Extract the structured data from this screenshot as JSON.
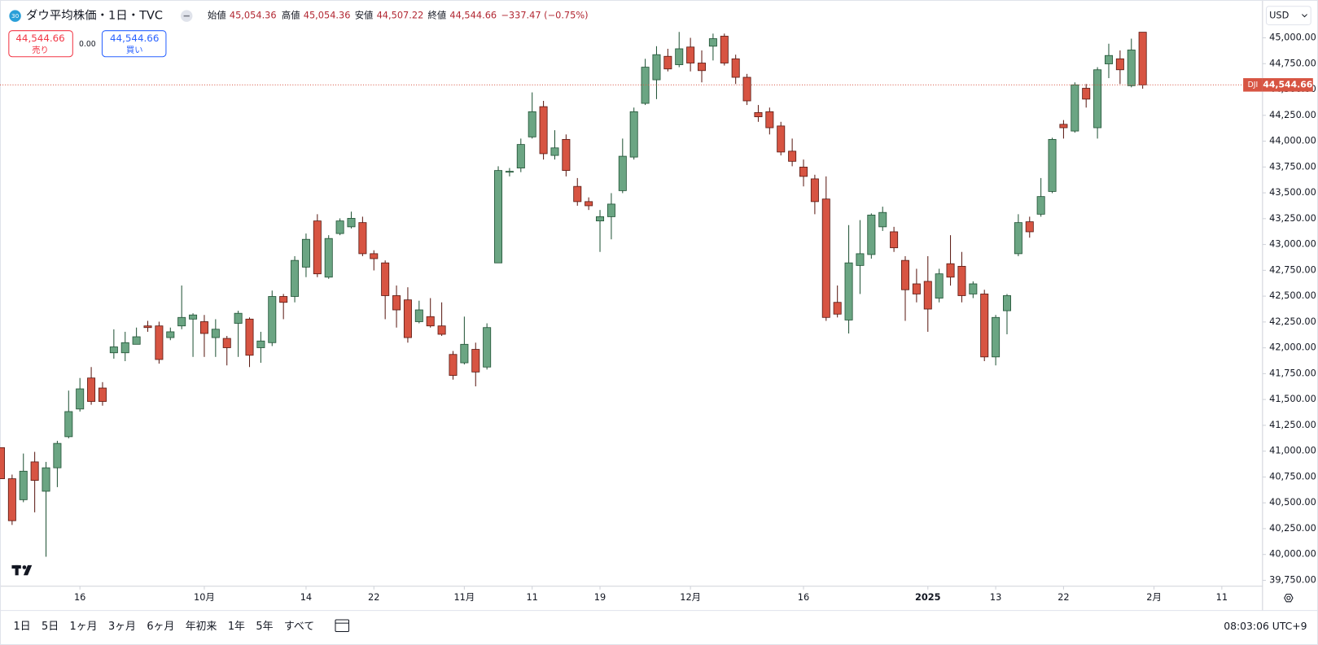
{
  "header": {
    "badge": "30",
    "title": "ダウ平均株価・1日・TVC",
    "ohlc": [
      {
        "label": "始値",
        "value": "45,054.36"
      },
      {
        "label": "高値",
        "value": "45,054.36"
      },
      {
        "label": "安値",
        "value": "44,507.22"
      },
      {
        "label": "終値",
        "value": "44,544.66"
      }
    ],
    "change": "−337.47 (−0.75%)"
  },
  "trade": {
    "sell_price": "44,544.66",
    "sell_label": "売り",
    "spread": "0.00",
    "buy_price": "44,544.66",
    "buy_label": "買い"
  },
  "chart_data": {
    "type": "candlestick",
    "currency": "USD",
    "symbol": "DJI",
    "last_price_label": "44,544.66",
    "up_color": "#6ba583",
    "down_color": "#d75442",
    "open": [
      41034,
      40733,
      40530,
      40896,
      40612,
      40839,
      41140,
      41408,
      41708,
      41611,
      41952,
      41952,
      42034,
      42212,
      42212,
      42099,
      42212,
      42278,
      42253,
      42099,
      42091,
      42237,
      42278,
      42001,
      42050,
      42497,
      42497,
      42781,
      43228,
      42684,
      43106,
      43171,
      43212,
      42911,
      42822,
      42505,
      42464,
      42253,
      42302,
      42212,
      41936,
      41855,
      41985,
      41814,
      42822,
      43700,
      43740,
      44041,
      44334,
      43862,
      44017,
      43562,
      43415,
      43228,
      43269,
      43521,
      43846,
      44366,
      44594,
      44821,
      44740,
      44911,
      44756,
      44919,
      45016,
      44797,
      44618,
      44277,
      44285,
      44147,
      43903,
      43749,
      43635,
      43440,
      42440,
      42269,
      42797,
      42903,
      43171,
      43123,
      42846,
      42619,
      42643,
      42481,
      42814,
      42789,
      42521,
      42521,
      41912,
      42359,
      42911,
      43220,
      43293,
      43513,
      44163,
      44098,
      44512,
      44130,
      44748,
      44797,
      44537,
      45054.36
    ],
    "high": [
      41034,
      40773,
      40977,
      40993,
      40896,
      41100,
      41586,
      41708,
      41814,
      41668,
      42179,
      42155,
      42196,
      42261,
      42253,
      42196,
      42603,
      42334,
      42318,
      42277,
      42115,
      42359,
      42294,
      42155,
      42554,
      42521,
      42887,
      43106,
      43293,
      43090,
      43253,
      43318,
      43269,
      42944,
      42846,
      42603,
      42586,
      42456,
      42481,
      42440,
      41969,
      42302,
      42050,
      42237,
      43757,
      43740,
      44025,
      44472,
      44390,
      44106,
      44065,
      43643,
      43456,
      43334,
      43497,
      44025,
      44325,
      44797,
      44919,
      44894,
      45057,
      45000,
      44878,
      45041,
      45041,
      44837,
      44651,
      44350,
      44325,
      44187,
      44025,
      43822,
      43675,
      43659,
      42603,
      43188,
      43236,
      43301,
      43366,
      43171,
      42887,
      42765,
      42887,
      42765,
      43090,
      42928,
      42643,
      42562,
      42318,
      42521,
      43293,
      43269,
      43643,
      44033,
      44204,
      44569,
      44553,
      44716,
      44943,
      44878,
      44992,
      45054.36
    ],
    "low": [
      40733,
      40286,
      40506,
      40408,
      39978,
      40652,
      41124,
      41383,
      41449,
      41440,
      41895,
      41871,
      42034,
      42155,
      41847,
      42074,
      42180,
      41912,
      41912,
      41912,
      41830,
      41912,
      41814,
      41855,
      42017,
      42277,
      42440,
      42684,
      42684,
      42668,
      43090,
      43155,
      42887,
      42749,
      42277,
      42196,
      42050,
      42237,
      42196,
      42115,
      41692,
      41839,
      41627,
      41790,
      42822,
      43659,
      43700,
      44025,
      43822,
      43822,
      43659,
      43375,
      43334,
      42928,
      43050,
      43497,
      43822,
      44350,
      44407,
      44675,
      44716,
      44675,
      44569,
      44781,
      44732,
      44553,
      44350,
      44187,
      44065,
      43862,
      43757,
      43562,
      43293,
      42261,
      42294,
      42139,
      42521,
      42863,
      43131,
      42928,
      42261,
      42440,
      42155,
      42440,
      42602,
      42440,
      42481,
      41871,
      41830,
      42131,
      42887,
      43066,
      43269,
      43497,
      44025,
      44082,
      44325,
      44025,
      44610,
      44553,
      44521,
      44507.22
    ],
    "close": [
      40733,
      40327,
      40806,
      40717,
      40839,
      41075,
      41383,
      41603,
      41481,
      41481,
      42009,
      42050,
      42107,
      42196,
      41887,
      42155,
      42294,
      42318,
      42139,
      42180,
      42001,
      42334,
      41928,
      42066,
      42497,
      42440,
      42846,
      43050,
      42716,
      43058,
      43228,
      43253,
      42911,
      42863,
      42505,
      42367,
      42099,
      42367,
      42212,
      42131,
      41733,
      42034,
      41766,
      42196,
      43716,
      43708,
      43968,
      44285,
      43879,
      43935,
      43716,
      43415,
      43375,
      43269,
      43391,
      43854,
      44285,
      44716,
      44837,
      44699,
      44894,
      44756,
      44683,
      44992,
      44756,
      44618,
      44390,
      44236,
      44130,
      43895,
      43805,
      43659,
      43415,
      42294,
      42326,
      42822,
      42911,
      43285,
      43310,
      42968,
      42562,
      42521,
      42375,
      42716,
      42684,
      42505,
      42619,
      41912,
      42294,
      42505,
      43212,
      43123,
      43464,
      44017,
      44130,
      44545,
      44407,
      44691,
      44829,
      44691,
      44882.13,
      44544.66
    ],
    "xlim": [
      -0.07,
      111.6
    ],
    "xticks": [
      {
        "value": 7,
        "label": "16"
      },
      {
        "value": 18,
        "label": "10月"
      },
      {
        "value": 27,
        "label": "14"
      },
      {
        "value": 33,
        "label": "22"
      },
      {
        "value": 41,
        "label": "11月"
      },
      {
        "value": 47,
        "label": "11"
      },
      {
        "value": 53,
        "label": "19"
      },
      {
        "value": 61,
        "label": "12月"
      },
      {
        "value": 71,
        "label": "16"
      },
      {
        "value": 82,
        "label": "2025"
      },
      {
        "value": 88,
        "label": "13"
      },
      {
        "value": 94,
        "label": "22"
      },
      {
        "value": 102,
        "label": "2月"
      },
      {
        "value": 108,
        "label": "11"
      }
    ],
    "ylim": [
      39693,
      45366
    ],
    "yticks": [
      {
        "value": 45000,
        "label": "45,000.00"
      },
      {
        "value": 44750,
        "label": "44,750.00"
      },
      {
        "value": 44500,
        "label": "44,500.00"
      },
      {
        "value": 44250,
        "label": "44,250.00"
      },
      {
        "value": 44000,
        "label": "44,000.00"
      },
      {
        "value": 43750,
        "label": "43,750.00"
      },
      {
        "value": 43500,
        "label": "43,500.00"
      },
      {
        "value": 43250,
        "label": "43,250.00"
      },
      {
        "value": 43000,
        "label": "43,000.00"
      },
      {
        "value": 42750,
        "label": "42,750.00"
      },
      {
        "value": 42500,
        "label": "42,500.00"
      },
      {
        "value": 42250,
        "label": "42,250.00"
      },
      {
        "value": 42000,
        "label": "42,000.00"
      },
      {
        "value": 41750,
        "label": "41,750.00"
      },
      {
        "value": 41500,
        "label": "41,500.00"
      },
      {
        "value": 41250,
        "label": "41,250.00"
      },
      {
        "value": 41000,
        "label": "41,000.00"
      },
      {
        "value": 40750,
        "label": "40,750.00"
      },
      {
        "value": 40500,
        "label": "40,500.00"
      },
      {
        "value": 40250,
        "label": "40,250.00"
      },
      {
        "value": 40000,
        "label": "40,000.00"
      },
      {
        "value": 39750,
        "label": "39,750.00"
      }
    ]
  },
  "toolbar": {
    "ranges": [
      "1日",
      "5日",
      "1ヶ月",
      "3ヶ月",
      "6ヶ月",
      "年初来",
      "1年",
      "5年",
      "すべて"
    ],
    "clock": "08:03:06 UTC+9"
  }
}
